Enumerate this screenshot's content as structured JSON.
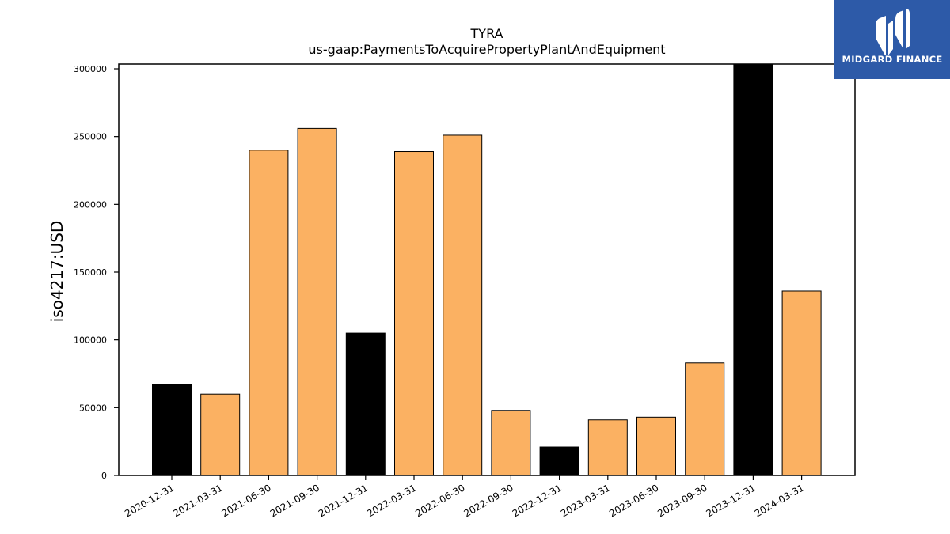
{
  "chart_data": {
    "type": "bar",
    "title": "TYRA",
    "subtitle": "us-gaap:PaymentsToAcquirePropertyPlantAndEquipment",
    "xlabel": "",
    "ylabel": "iso4217:USD",
    "categories": [
      "2020-12-31",
      "2021-03-31",
      "2021-06-30",
      "2021-09-30",
      "2021-12-31",
      "2022-03-31",
      "2022-06-30",
      "2022-09-30",
      "2022-12-31",
      "2023-03-31",
      "2023-06-30",
      "2023-09-30",
      "2023-12-31",
      "2024-03-31"
    ],
    "values": [
      67000,
      60000,
      240000,
      256000,
      105000,
      239000,
      251000,
      48000,
      21000,
      41000,
      43000,
      83000,
      305000,
      136000
    ],
    "bar_colors": [
      "#000000",
      "#fbb162",
      "#fbb162",
      "#fbb162",
      "#000000",
      "#fbb162",
      "#fbb162",
      "#fbb162",
      "#000000",
      "#fbb162",
      "#fbb162",
      "#fbb162",
      "#000000",
      "#fbb162"
    ],
    "ylim": [
      0,
      300000
    ],
    "yticks": [
      0,
      50000,
      100000,
      150000,
      200000,
      250000,
      300000
    ],
    "grid": false,
    "legend": "none"
  },
  "logo": {
    "text": "MIDGARD FINANCE",
    "background": "#2d5aa8"
  }
}
